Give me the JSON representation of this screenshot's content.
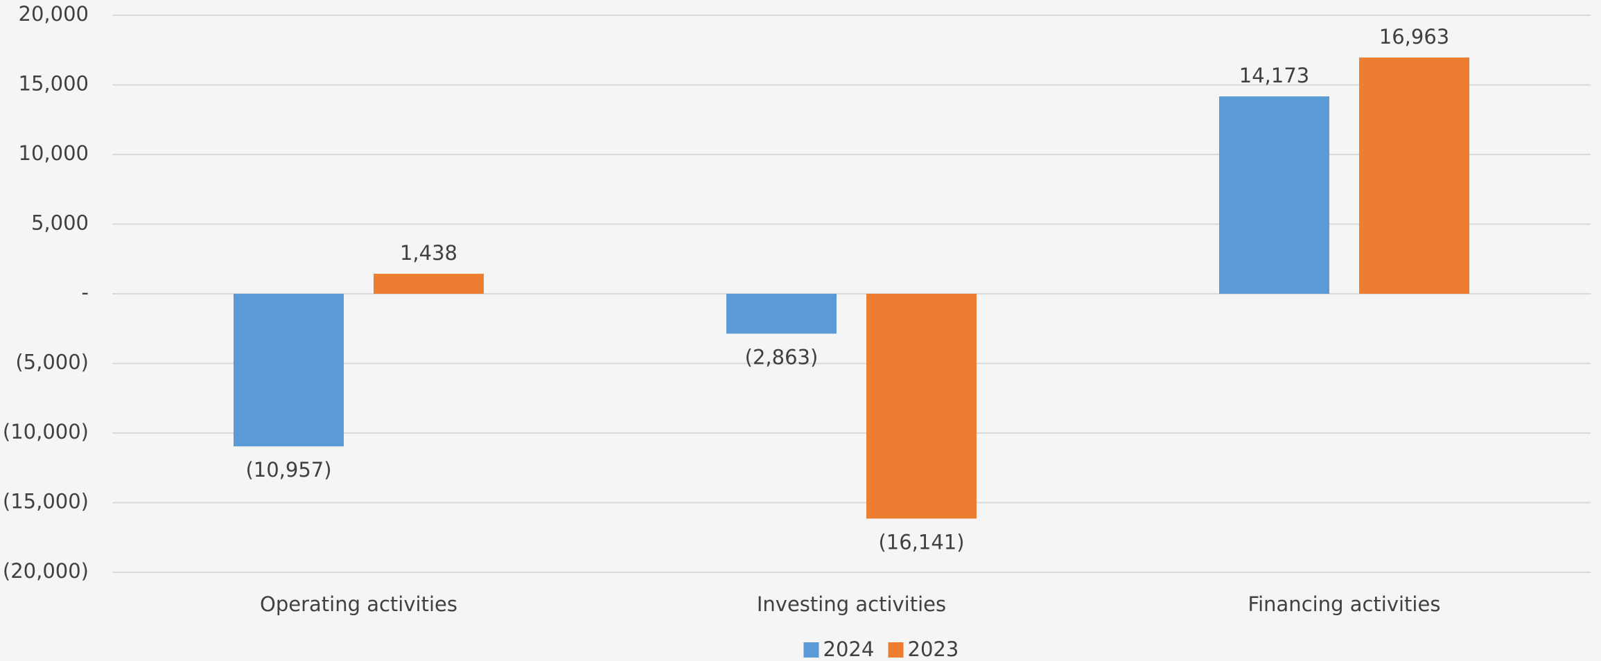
{
  "chart_data": {
    "type": "bar",
    "categories": [
      "Operating activities",
      "Investing activities",
      "Financing activities"
    ],
    "series": [
      {
        "name": "2024",
        "color": "#5b9bd5",
        "values": [
          -10957,
          -2863,
          14173
        ],
        "value_labels": [
          "(10,957)",
          "(2,863)",
          "14,173"
        ]
      },
      {
        "name": "2023",
        "color": "#ed7d31",
        "values": [
          1438,
          -16141,
          16963
        ],
        "value_labels": [
          "1,438",
          "(16,141)",
          "16,963"
        ]
      }
    ],
    "ylim": [
      -20000,
      20000
    ],
    "yticks": [
      {
        "value": -20000,
        "label": "(20,000)"
      },
      {
        "value": -15000,
        "label": "(15,000)"
      },
      {
        "value": -10000,
        "label": "(10,000)"
      },
      {
        "value": -5000,
        "label": "(5,000)"
      },
      {
        "value": 0,
        "label": "-"
      },
      {
        "value": 5000,
        "label": "5,000"
      },
      {
        "value": 10000,
        "label": "10,000"
      },
      {
        "value": 15000,
        "label": "15,000"
      },
      {
        "value": 20000,
        "label": "20,000"
      }
    ],
    "grid": true,
    "legend": "bottom"
  }
}
